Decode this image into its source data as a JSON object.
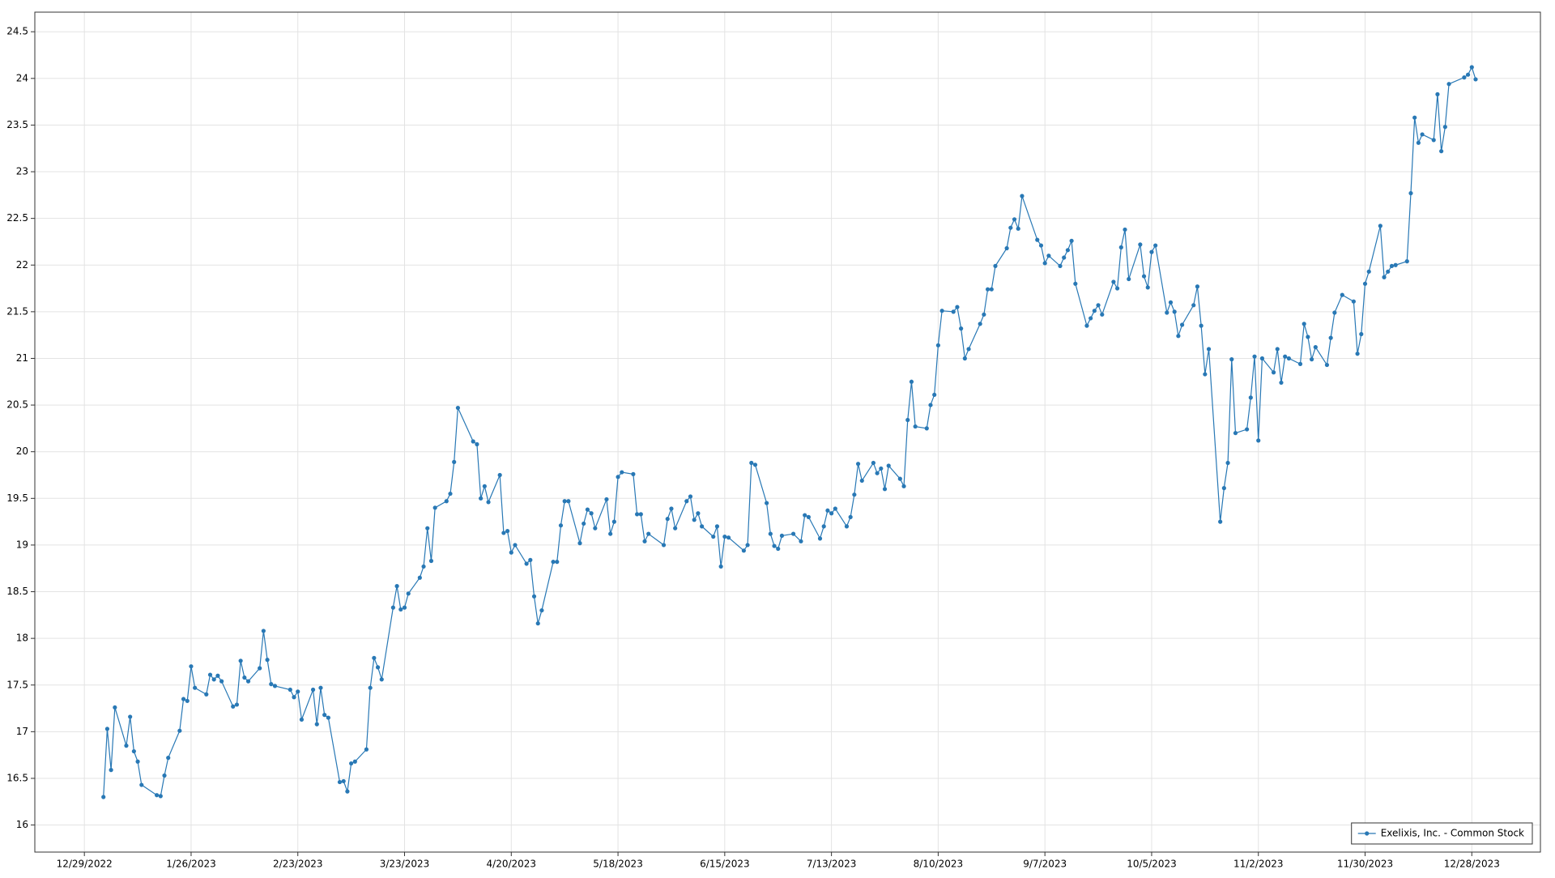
{
  "chart_data": {
    "type": "line",
    "x": [
      "2023-01-03",
      "2023-01-04",
      "2023-01-05",
      "2023-01-06",
      "2023-01-09",
      "2023-01-10",
      "2023-01-11",
      "2023-01-12",
      "2023-01-13",
      "2023-01-17",
      "2023-01-18",
      "2023-01-19",
      "2023-01-20",
      "2023-01-23",
      "2023-01-24",
      "2023-01-25",
      "2023-01-26",
      "2023-01-27",
      "2023-01-30",
      "2023-01-31",
      "2023-02-01",
      "2023-02-02",
      "2023-02-03",
      "2023-02-06",
      "2023-02-07",
      "2023-02-08",
      "2023-02-09",
      "2023-02-10",
      "2023-02-13",
      "2023-02-14",
      "2023-02-15",
      "2023-02-16",
      "2023-02-17",
      "2023-02-21",
      "2023-02-22",
      "2023-02-23",
      "2023-02-24",
      "2023-02-27",
      "2023-02-28",
      "2023-03-01",
      "2023-03-02",
      "2023-03-03",
      "2023-03-06",
      "2023-03-07",
      "2023-03-08",
      "2023-03-09",
      "2023-03-10",
      "2023-03-13",
      "2023-03-14",
      "2023-03-15",
      "2023-03-16",
      "2023-03-17",
      "2023-03-20",
      "2023-03-21",
      "2023-03-22",
      "2023-03-23",
      "2023-03-24",
      "2023-03-27",
      "2023-03-28",
      "2023-03-29",
      "2023-03-30",
      "2023-03-31",
      "2023-04-03",
      "2023-04-04",
      "2023-04-05",
      "2023-04-06",
      "2023-04-10",
      "2023-04-11",
      "2023-04-12",
      "2023-04-13",
      "2023-04-14",
      "2023-04-17",
      "2023-04-18",
      "2023-04-19",
      "2023-04-20",
      "2023-04-21",
      "2023-04-24",
      "2023-04-25",
      "2023-04-26",
      "2023-04-27",
      "2023-04-28",
      "2023-05-01",
      "2023-05-02",
      "2023-05-03",
      "2023-05-04",
      "2023-05-05",
      "2023-05-08",
      "2023-05-09",
      "2023-05-10",
      "2023-05-11",
      "2023-05-12",
      "2023-05-15",
      "2023-05-16",
      "2023-05-17",
      "2023-05-18",
      "2023-05-19",
      "2023-05-22",
      "2023-05-23",
      "2023-05-24",
      "2023-05-25",
      "2023-05-26",
      "2023-05-30",
      "2023-05-31",
      "2023-06-01",
      "2023-06-02",
      "2023-06-05",
      "2023-06-06",
      "2023-06-07",
      "2023-06-08",
      "2023-06-09",
      "2023-06-12",
      "2023-06-13",
      "2023-06-14",
      "2023-06-15",
      "2023-06-16",
      "2023-06-20",
      "2023-06-21",
      "2023-06-22",
      "2023-06-23",
      "2023-06-26",
      "2023-06-27",
      "2023-06-28",
      "2023-06-29",
      "2023-06-30",
      "2023-07-03",
      "2023-07-05",
      "2023-07-06",
      "2023-07-07",
      "2023-07-10",
      "2023-07-11",
      "2023-07-12",
      "2023-07-13",
      "2023-07-14",
      "2023-07-17",
      "2023-07-18",
      "2023-07-19",
      "2023-07-20",
      "2023-07-21",
      "2023-07-24",
      "2023-07-25",
      "2023-07-26",
      "2023-07-27",
      "2023-07-28",
      "2023-07-31",
      "2023-08-01",
      "2023-08-02",
      "2023-08-03",
      "2023-08-04",
      "2023-08-07",
      "2023-08-08",
      "2023-08-09",
      "2023-08-10",
      "2023-08-11",
      "2023-08-14",
      "2023-08-15",
      "2023-08-16",
      "2023-08-17",
      "2023-08-18",
      "2023-08-21",
      "2023-08-22",
      "2023-08-23",
      "2023-08-24",
      "2023-08-25",
      "2023-08-28",
      "2023-08-29",
      "2023-08-30",
      "2023-08-31",
      "2023-09-01",
      "2023-09-05",
      "2023-09-06",
      "2023-09-07",
      "2023-09-08",
      "2023-09-11",
      "2023-09-12",
      "2023-09-13",
      "2023-09-14",
      "2023-09-15",
      "2023-09-18",
      "2023-09-19",
      "2023-09-20",
      "2023-09-21",
      "2023-09-22",
      "2023-09-25",
      "2023-09-26",
      "2023-09-27",
      "2023-09-28",
      "2023-09-29",
      "2023-10-02",
      "2023-10-03",
      "2023-10-04",
      "2023-10-05",
      "2023-10-06",
      "2023-10-09",
      "2023-10-10",
      "2023-10-11",
      "2023-10-12",
      "2023-10-13",
      "2023-10-16",
      "2023-10-17",
      "2023-10-18",
      "2023-10-19",
      "2023-10-20",
      "2023-10-23",
      "2023-10-24",
      "2023-10-25",
      "2023-10-26",
      "2023-10-27",
      "2023-10-30",
      "2023-10-31",
      "2023-11-01",
      "2023-11-02",
      "2023-11-03",
      "2023-11-06",
      "2023-11-07",
      "2023-11-08",
      "2023-11-09",
      "2023-11-10",
      "2023-11-13",
      "2023-11-14",
      "2023-11-15",
      "2023-11-16",
      "2023-11-17",
      "2023-11-20",
      "2023-11-21",
      "2023-11-22",
      "2023-11-24",
      "2023-11-27",
      "2023-11-28",
      "2023-11-29",
      "2023-11-30",
      "2023-12-01",
      "2023-12-04",
      "2023-12-05",
      "2023-12-06",
      "2023-12-07",
      "2023-12-08",
      "2023-12-11",
      "2023-12-12",
      "2023-12-13",
      "2023-12-14",
      "2023-12-15",
      "2023-12-18",
      "2023-12-19",
      "2023-12-20",
      "2023-12-21",
      "2023-12-22",
      "2023-12-26",
      "2023-12-27",
      "2023-12-28",
      "2023-12-29"
    ],
    "series": [
      {
        "name": "Exelixis, Inc. - Common Stock",
        "color": "#2878b5",
        "values": [
          16.3,
          17.03,
          16.59,
          17.26,
          16.85,
          17.16,
          16.79,
          16.68,
          16.43,
          16.32,
          16.31,
          16.53,
          16.72,
          17.01,
          17.35,
          17.33,
          17.7,
          17.47,
          17.4,
          17.61,
          17.56,
          17.6,
          17.54,
          17.27,
          17.29,
          17.76,
          17.58,
          17.54,
          17.68,
          18.08,
          17.77,
          17.51,
          17.49,
          17.45,
          17.37,
          17.43,
          17.13,
          17.45,
          17.08,
          17.47,
          17.18,
          17.15,
          16.46,
          16.47,
          16.36,
          16.66,
          16.68,
          16.81,
          17.47,
          17.79,
          17.69,
          17.56,
          18.33,
          18.56,
          18.31,
          18.33,
          18.48,
          18.65,
          18.77,
          19.18,
          18.83,
          19.4,
          19.47,
          19.55,
          19.89,
          20.47,
          20.11,
          20.08,
          19.5,
          19.63,
          19.46,
          19.75,
          19.13,
          19.15,
          18.92,
          19.0,
          18.8,
          18.84,
          18.45,
          18.16,
          18.3,
          18.82,
          18.82,
          19.21,
          19.47,
          19.47,
          19.02,
          19.23,
          19.38,
          19.34,
          19.18,
          19.49,
          19.12,
          19.25,
          19.73,
          19.78,
          19.76,
          19.33,
          19.33,
          19.04,
          19.12,
          19.0,
          19.28,
          19.39,
          19.18,
          19.47,
          19.52,
          19.27,
          19.34,
          19.2,
          19.09,
          19.2,
          18.77,
          19.09,
          19.08,
          18.94,
          19.0,
          19.88,
          19.86,
          19.45,
          19.12,
          18.99,
          18.96,
          19.1,
          19.12,
          19.04,
          19.32,
          19.3,
          19.07,
          19.2,
          19.37,
          19.34,
          19.39,
          19.2,
          19.3,
          19.54,
          19.87,
          19.69,
          19.88,
          19.77,
          19.82,
          19.6,
          19.85,
          19.71,
          19.63,
          20.34,
          20.75,
          20.27,
          20.25,
          20.5,
          20.61,
          21.14,
          21.51,
          21.5,
          21.55,
          21.32,
          21.0,
          21.1,
          21.37,
          21.47,
          21.74,
          21.74,
          21.99,
          22.18,
          22.4,
          22.49,
          22.39,
          22.74,
          22.27,
          22.21,
          22.02,
          22.1,
          21.99,
          22.08,
          22.16,
          22.26,
          21.8,
          21.35,
          21.43,
          21.51,
          21.57,
          21.47,
          21.82,
          21.75,
          22.19,
          22.38,
          21.85,
          22.22,
          21.88,
          21.76,
          22.14,
          22.21,
          21.49,
          21.6,
          21.5,
          21.24,
          21.36,
          21.57,
          21.77,
          21.35,
          20.83,
          21.1,
          19.25,
          19.61,
          19.88,
          20.99,
          20.2,
          20.24,
          20.58,
          21.02,
          20.12,
          21.0,
          20.85,
          21.1,
          20.74,
          21.02,
          21.0,
          20.94,
          21.37,
          21.23,
          20.99,
          21.12,
          20.93,
          21.22,
          21.49,
          21.68,
          21.61,
          21.05,
          21.26,
          21.8,
          21.93,
          22.42,
          21.87,
          21.93,
          21.99,
          22.0,
          22.04,
          22.77,
          23.58,
          23.31,
          23.4,
          23.34,
          23.83,
          23.22,
          23.48,
          23.94,
          24.01,
          24.04,
          24.12,
          23.99
        ]
      }
    ],
    "xlim": [
      "2022-12-16",
      "2024-01-15"
    ],
    "xticks": [
      {
        "value": "2022-12-29",
        "label": "12/29/2022"
      },
      {
        "value": "2023-01-26",
        "label": "1/26/2023"
      },
      {
        "value": "2023-02-23",
        "label": "2/23/2023"
      },
      {
        "value": "2023-03-23",
        "label": "3/23/2023"
      },
      {
        "value": "2023-04-20",
        "label": "4/20/2023"
      },
      {
        "value": "2023-05-18",
        "label": "5/18/2023"
      },
      {
        "value": "2023-06-15",
        "label": "6/15/2023"
      },
      {
        "value": "2023-07-13",
        "label": "7/13/2023"
      },
      {
        "value": "2023-08-10",
        "label": "8/10/2023"
      },
      {
        "value": "2023-09-07",
        "label": "9/7/2023"
      },
      {
        "value": "2023-10-05",
        "label": "10/5/2023"
      },
      {
        "value": "2023-11-02",
        "label": "11/2/2023"
      },
      {
        "value": "2023-11-30",
        "label": "11/30/2023"
      },
      {
        "value": "2023-12-28",
        "label": "12/28/2023"
      }
    ],
    "ylim": [
      15.71,
      24.71
    ],
    "yticks": [
      16,
      16.5,
      17,
      17.5,
      18,
      18.5,
      19,
      19.5,
      20,
      20.5,
      21,
      21.5,
      22,
      22.5,
      23,
      23.5,
      24,
      24.5
    ],
    "grid": true,
    "legend": "lower right"
  }
}
